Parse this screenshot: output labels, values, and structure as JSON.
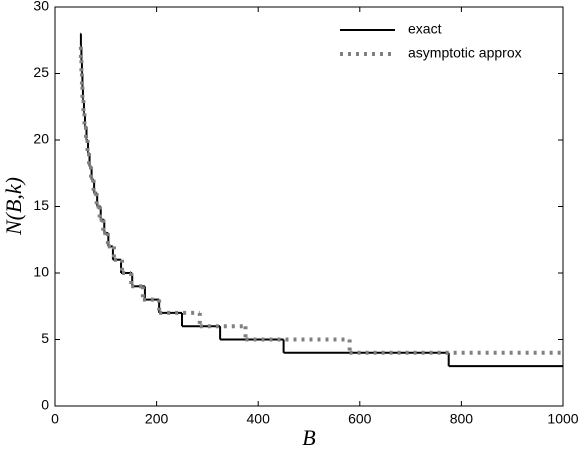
{
  "chart_data": {
    "type": "step",
    "xlabel": "B",
    "ylabel": "N(B,k)",
    "xlim": [
      0,
      1000
    ],
    "xticks": [
      0,
      200,
      400,
      600,
      800,
      1000
    ],
    "ylim": [
      0,
      30
    ],
    "yticks": [
      0,
      5,
      10,
      15,
      20,
      25,
      30
    ],
    "legend": "upper right",
    "series": [
      {
        "name": "exact",
        "color": "#000000",
        "style": "solid",
        "x": [
          50,
          51,
          52,
          53,
          54,
          55,
          57,
          59,
          62,
          65,
          68,
          72,
          77,
          83,
          90,
          97,
          105,
          114,
          130,
          152,
          177,
          205,
          250,
          325,
          450,
          775
        ],
        "values": [
          28,
          27,
          26,
          25,
          24,
          23,
          22,
          21,
          20,
          19,
          18,
          17,
          16,
          15,
          14,
          13,
          12,
          11,
          10,
          9,
          8,
          7,
          6,
          5,
          4,
          3
        ]
      },
      {
        "name": "asymptotic approx",
        "color": "#808080",
        "style": "dotted",
        "x": [
          50,
          51,
          52,
          53,
          54,
          56,
          58,
          61,
          64,
          67,
          71,
          76,
          82,
          88,
          95,
          104,
          116,
          132,
          150,
          173,
          205,
          285,
          375,
          580
        ],
        "values": [
          27,
          26,
          25,
          24,
          23,
          22,
          21,
          20,
          19,
          18,
          17,
          16,
          15,
          14,
          13,
          12,
          11,
          10,
          9,
          8,
          7,
          6,
          5,
          4
        ]
      }
    ]
  }
}
